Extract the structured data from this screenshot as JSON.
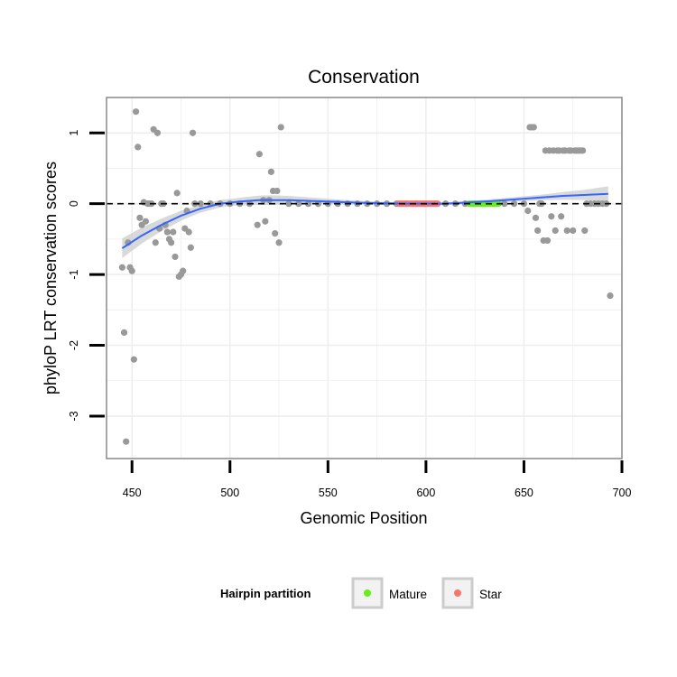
{
  "chart_data": {
    "type": "scatter",
    "title": "Conservation",
    "xlabel": "Genomic Position",
    "ylabel": "phyloP LRT conservation scores",
    "xlim": [
      437,
      700
    ],
    "ylim": [
      -3.6,
      1.5
    ],
    "xticks": [
      450,
      500,
      550,
      600,
      650,
      700
    ],
    "yticks": [
      -3,
      -2,
      -1,
      0,
      1
    ],
    "reference_line": {
      "y": 0,
      "style": "dashed"
    },
    "legend": {
      "title": "Hairpin partition",
      "position": "bottom",
      "entries": [
        {
          "label": "Mature",
          "color": "#66ee1a"
        },
        {
          "label": "Star",
          "color": "#f8766d"
        }
      ]
    },
    "colors": {
      "points": "#999999",
      "smooth_line": "#3366ff",
      "smooth_band": "#cccccc",
      "mature": "#66ee1a",
      "star": "#f8766d",
      "panel_border": "#888888",
      "grid": "#eeeeee"
    },
    "series": [
      {
        "name": "scores",
        "points": [
          [
            445,
            -0.9
          ],
          [
            446,
            -1.82
          ],
          [
            447,
            -3.36
          ],
          [
            448,
            -0.55
          ],
          [
            449,
            -0.9
          ],
          [
            450,
            -0.95
          ],
          [
            451,
            -2.2
          ],
          [
            452,
            1.3
          ],
          [
            453,
            0.8
          ],
          [
            454,
            -0.2
          ],
          [
            455,
            -0.3
          ],
          [
            456,
            0.02
          ],
          [
            457,
            -0.25
          ],
          [
            458,
            0.0
          ],
          [
            459,
            0.0
          ],
          [
            460,
            0.0
          ],
          [
            461,
            1.05
          ],
          [
            462,
            -0.55
          ],
          [
            463,
            1.0
          ],
          [
            464,
            -0.35
          ],
          [
            465,
            0.0
          ],
          [
            466,
            0.0
          ],
          [
            467,
            -0.3
          ],
          [
            468,
            -0.4
          ],
          [
            469,
            -0.5
          ],
          [
            470,
            -0.55
          ],
          [
            471,
            -0.4
          ],
          [
            472,
            -0.75
          ],
          [
            473,
            0.15
          ],
          [
            474,
            -1.03
          ],
          [
            475,
            -1.0
          ],
          [
            476,
            -0.95
          ],
          [
            477,
            -0.35
          ],
          [
            478,
            -0.1
          ],
          [
            479,
            -0.4
          ],
          [
            480,
            -0.62
          ],
          [
            481,
            1.0
          ],
          [
            482,
            0.0
          ],
          [
            485,
            0.0
          ],
          [
            490,
            0.0
          ],
          [
            495,
            0.0
          ],
          [
            500,
            0.0
          ],
          [
            505,
            0.0
          ],
          [
            510,
            0.0
          ],
          [
            514,
            -0.3
          ],
          [
            515,
            0.7
          ],
          [
            517,
            0.05
          ],
          [
            518,
            -0.25
          ],
          [
            520,
            0.05
          ],
          [
            521,
            0.45
          ],
          [
            522,
            0.18
          ],
          [
            523,
            -0.42
          ],
          [
            524,
            0.18
          ],
          [
            525,
            -0.55
          ],
          [
            526,
            1.08
          ],
          [
            530,
            0.0
          ],
          [
            535,
            0.0
          ],
          [
            540,
            0.0
          ],
          [
            545,
            0.0
          ],
          [
            550,
            0.0
          ],
          [
            555,
            0.0
          ],
          [
            560,
            0.0
          ],
          [
            565,
            0.0
          ],
          [
            570,
            0.0
          ],
          [
            575,
            0.0
          ],
          [
            580,
            0.0
          ],
          [
            585,
            0.0
          ],
          [
            590,
            0.0
          ],
          [
            595,
            0.0
          ],
          [
            600,
            0.0
          ],
          [
            605,
            0.0
          ],
          [
            610,
            0.0
          ],
          [
            615,
            0.0
          ],
          [
            620,
            0.0
          ],
          [
            625,
            0.0
          ],
          [
            630,
            0.0
          ],
          [
            635,
            0.0
          ],
          [
            640,
            0.0
          ],
          [
            645,
            0.0
          ],
          [
            650,
            0.0
          ],
          [
            652,
            -0.1
          ],
          [
            653,
            1.08
          ],
          [
            654,
            1.08
          ],
          [
            655,
            1.08
          ],
          [
            656,
            -0.2
          ],
          [
            657,
            -0.38
          ],
          [
            658,
            0.0
          ],
          [
            659,
            0.0
          ],
          [
            660,
            -0.52
          ],
          [
            661,
            0.75
          ],
          [
            662,
            -0.52
          ],
          [
            663,
            0.75
          ],
          [
            664,
            -0.18
          ],
          [
            665,
            0.75
          ],
          [
            666,
            -0.38
          ],
          [
            667,
            0.75
          ],
          [
            668,
            0.75
          ],
          [
            669,
            -0.18
          ],
          [
            670,
            0.75
          ],
          [
            671,
            0.75
          ],
          [
            672,
            -0.38
          ],
          [
            673,
            0.75
          ],
          [
            674,
            0.75
          ],
          [
            675,
            -0.38
          ],
          [
            676,
            0.75
          ],
          [
            677,
            0.75
          ],
          [
            678,
            0.75
          ],
          [
            679,
            0.75
          ],
          [
            680,
            0.75
          ],
          [
            681,
            -0.38
          ],
          [
            682,
            0.0
          ],
          [
            684,
            0.0
          ],
          [
            686,
            0.0
          ],
          [
            688,
            0.0
          ],
          [
            690,
            0.0
          ],
          [
            692,
            0.0
          ],
          [
            694,
            -1.3
          ]
        ]
      },
      {
        "name": "smooth",
        "points": [
          [
            445,
            -0.63
          ],
          [
            455,
            -0.45
          ],
          [
            465,
            -0.3
          ],
          [
            475,
            -0.17
          ],
          [
            485,
            -0.07
          ],
          [
            495,
            0.0
          ],
          [
            505,
            0.03
          ],
          [
            515,
            0.05
          ],
          [
            530,
            0.05
          ],
          [
            550,
            0.03
          ],
          [
            570,
            0.01
          ],
          [
            590,
            0.0
          ],
          [
            610,
            0.0
          ],
          [
            630,
            0.03
          ],
          [
            650,
            0.07
          ],
          [
            670,
            0.11
          ],
          [
            694,
            0.14
          ]
        ],
        "band_halfwidth": [
          [
            445,
            0.14
          ],
          [
            460,
            0.1
          ],
          [
            480,
            0.06
          ],
          [
            500,
            0.05
          ],
          [
            520,
            0.07
          ],
          [
            540,
            0.05
          ],
          [
            560,
            0.03
          ],
          [
            580,
            0.02
          ],
          [
            600,
            0.02
          ],
          [
            620,
            0.02
          ],
          [
            640,
            0.03
          ],
          [
            660,
            0.04
          ],
          [
            680,
            0.07
          ],
          [
            694,
            0.11
          ]
        ]
      },
      {
        "name": "Star",
        "segment": [
          586,
          606
        ]
      },
      {
        "name": "Mature",
        "segment": [
          622,
          637
        ]
      }
    ]
  }
}
